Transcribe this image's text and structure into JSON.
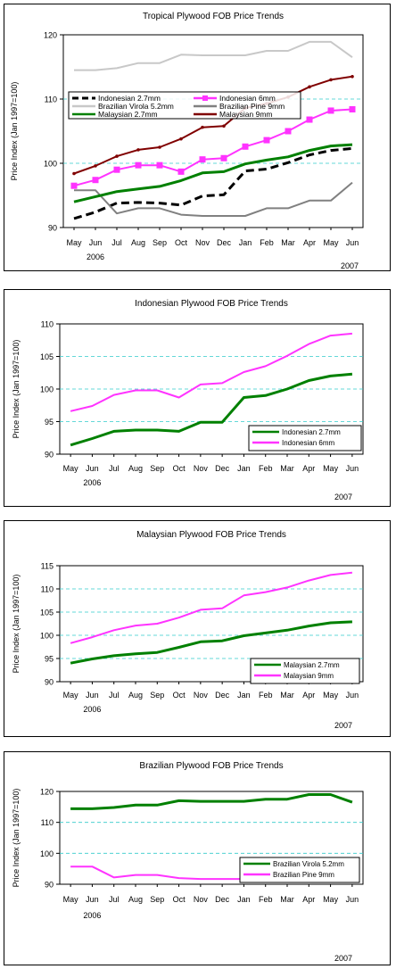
{
  "months": [
    "May",
    "Jun",
    "Jul",
    "Aug",
    "Sep",
    "Oct",
    "Nov",
    "Dec",
    "Jan",
    "Feb",
    "Mar",
    "Apr",
    "May",
    "Jun"
  ],
  "year_start": "2006",
  "year_end": "2007",
  "chart_data": [
    {
      "type": "line",
      "title": "Tropical Plywood FOB Price Trends",
      "ylabel": "Price Index (Jan 1997=100)",
      "ylim": [
        90,
        120
      ],
      "yticks": [
        90,
        100,
        110,
        120
      ],
      "grid": true,
      "legend": "inside-upper-left",
      "series": [
        {
          "name": "Indonesian 2.7mm",
          "color": "#000000",
          "style": "dashed",
          "marker": "none",
          "values": [
            91.4,
            92.4,
            93.8,
            93.9,
            93.8,
            93.5,
            94.9,
            95.1,
            98.8,
            99.1,
            100.1,
            101.3,
            102.0,
            102.3
          ]
        },
        {
          "name": "Indonesian 6mm",
          "color": "#ff33ff",
          "style": "solid",
          "marker": "square",
          "values": [
            96.5,
            97.4,
            99.0,
            99.7,
            99.7,
            98.7,
            100.6,
            100.8,
            102.6,
            103.6,
            105.0,
            106.8,
            108.2,
            108.4
          ]
        },
        {
          "name": "Brazilian Virola 5.2mm",
          "color": "#c8c8c8",
          "style": "solid",
          "marker": "none",
          "values": [
            114.5,
            114.5,
            114.8,
            115.6,
            115.6,
            116.9,
            116.8,
            116.8,
            116.8,
            117.5,
            117.5,
            118.9,
            118.9,
            116.5
          ]
        },
        {
          "name": "Brazilian Pine 9mm",
          "color": "#808080",
          "style": "solid",
          "marker": "none",
          "values": [
            95.8,
            95.8,
            92.2,
            93.0,
            93.0,
            92.0,
            91.8,
            91.8,
            91.8,
            93.0,
            93.0,
            94.2,
            94.2,
            97.0
          ]
        },
        {
          "name": "Malaysian 2.7mm",
          "color": "#008000",
          "style": "solid",
          "marker": "none",
          "values": [
            94.0,
            94.8,
            95.6,
            96.0,
            96.4,
            97.3,
            98.5,
            98.7,
            99.9,
            100.5,
            101.0,
            102.0,
            102.7,
            102.9
          ]
        },
        {
          "name": "Malaysian 9mm",
          "color": "#800000",
          "style": "solid",
          "marker": "dot",
          "values": [
            98.4,
            99.6,
            101.1,
            102.1,
            102.5,
            103.8,
            105.6,
            105.8,
            108.6,
            109.3,
            110.3,
            111.9,
            113.0,
            113.5
          ]
        }
      ]
    },
    {
      "type": "line",
      "title": "Indonesian Plywood FOB Price Trends",
      "ylabel": "Price Index (Jan 1997=100)",
      "ylim": [
        90,
        110
      ],
      "yticks": [
        90,
        95,
        100,
        105,
        110
      ],
      "grid": true,
      "legend": "bottom-right",
      "series": [
        {
          "name": "Indonesian 2.7mm",
          "color": "#008000",
          "values": [
            91.4,
            92.4,
            93.5,
            93.7,
            93.7,
            93.5,
            94.9,
            94.9,
            98.7,
            99.0,
            100.0,
            101.3,
            102.0,
            102.3
          ]
        },
        {
          "name": "Indonesian 6mm",
          "color": "#ff33ff",
          "values": [
            96.6,
            97.4,
            99.1,
            99.8,
            99.8,
            98.7,
            100.7,
            100.9,
            102.6,
            103.5,
            105.1,
            106.9,
            108.2,
            108.5
          ]
        }
      ]
    },
    {
      "type": "line",
      "title": "Malaysian Plywood FOB Price Trends",
      "ylabel": "Price Index (Jan 1997=100)",
      "ylim": [
        90,
        115
      ],
      "yticks": [
        90,
        95,
        100,
        105,
        110,
        115
      ],
      "grid": true,
      "legend": "bottom-right",
      "series": [
        {
          "name": "Malaysian 2.7mm",
          "color": "#008000",
          "values": [
            94.0,
            94.9,
            95.6,
            96.0,
            96.3,
            97.4,
            98.6,
            98.8,
            99.9,
            100.5,
            101.1,
            102.0,
            102.7,
            102.9
          ]
        },
        {
          "name": "Malaysian 9mm",
          "color": "#ff33ff",
          "values": [
            98.3,
            99.6,
            101.1,
            102.1,
            102.5,
            103.8,
            105.5,
            105.8,
            108.6,
            109.3,
            110.3,
            111.8,
            113.0,
            113.5
          ]
        }
      ]
    },
    {
      "type": "line",
      "title": "Brazilian Plywood FOB Price Trends",
      "ylabel": "Price Index (Jan 1997=100)",
      "ylim": [
        90,
        120
      ],
      "yticks": [
        90,
        100,
        110,
        120
      ],
      "grid": true,
      "legend": "bottom-right",
      "series": [
        {
          "name": "Brazilian Virola 5.2mm",
          "color": "#008000",
          "values": [
            114.4,
            114.4,
            114.8,
            115.6,
            115.6,
            117.0,
            116.8,
            116.8,
            116.8,
            117.5,
            117.5,
            119.0,
            119.0,
            116.5
          ]
        },
        {
          "name": "Brazilian Pine 9mm",
          "color": "#ff33ff",
          "values": [
            95.7,
            95.7,
            92.2,
            93.0,
            93.0,
            92.0,
            91.7,
            91.7,
            91.7,
            93.0,
            93.0,
            94.2,
            94.2,
            97.0
          ]
        }
      ]
    }
  ]
}
